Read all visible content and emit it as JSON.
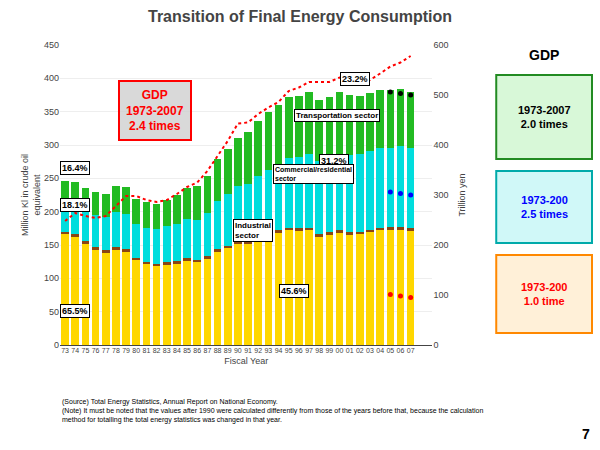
{
  "chart_data": {
    "type": "bar",
    "stacked": true,
    "title": "Transition of Final Energy Consumption",
    "xlabel": "Fiscal Year",
    "ylabel": "Million Kl in crude oil\nequivalent",
    "y2label": "Trillion yen",
    "categories": [
      "73",
      "74",
      "75",
      "76",
      "77",
      "78",
      "79",
      "80",
      "81",
      "82",
      "83",
      "84",
      "85",
      "86",
      "87",
      "88",
      "89",
      "90",
      "91",
      "92",
      "93",
      "94",
      "95",
      "96",
      "97",
      "98",
      "99",
      "00",
      "01",
      "02",
      "03",
      "04",
      "05",
      "06",
      "07"
    ],
    "ylim": [
      0,
      450
    ],
    "yticks": [
      0,
      50,
      100,
      150,
      200,
      250,
      300,
      350,
      400,
      450
    ],
    "y2lim": [
      0,
      600
    ],
    "y2ticks": [
      0,
      100,
      200,
      300,
      400,
      500,
      600
    ],
    "grid": true,
    "series": [
      {
        "type": "bar",
        "color": "#FFD700",
        "values": [
          166,
          162,
          152,
          143,
          138,
          143,
          140,
          127,
          121,
          118,
          120,
          122,
          126,
          124,
          129,
          140,
          145,
          152,
          152,
          158,
          163,
          168,
          172,
          171,
          172,
          162,
          165,
          168,
          165,
          166,
          169,
          172,
          173,
          173,
          171
        ]
      },
      {
        "type": "bar",
        "color": "#8B4513",
        "values": [
          4,
          4,
          4,
          4,
          4,
          4,
          4,
          4,
          4,
          4,
          4,
          4,
          4,
          4,
          4,
          4,
          4,
          4,
          4,
          4,
          4,
          4,
          4,
          4,
          4,
          4,
          4,
          4,
          4,
          4,
          4,
          4,
          4,
          4,
          4
        ]
      },
      {
        "type": "bar",
        "color": "#00DDDD",
        "values": [
          46,
          47,
          47,
          48,
          50,
          53,
          53,
          50,
          51,
          52,
          54,
          56,
          59,
          60,
          65,
          72,
          77,
          82,
          85,
          92,
          96,
          100,
          105,
          107,
          111,
          110,
          112,
          115,
          116,
          116,
          118,
          120,
          119,
          121,
          120
        ]
      },
      {
        "type": "bar",
        "color": "#22BB22",
        "values": [
          30,
          32,
          33,
          34,
          35,
          38,
          40,
          38,
          38,
          38,
          40,
          43,
          47,
          50,
          56,
          63,
          68,
          73,
          78,
          82,
          86,
          88,
          91,
          92,
          93,
          91,
          91,
          92,
          90,
          88,
          87,
          87,
          87,
          86,
          85
        ]
      },
      {
        "type": "line",
        "color": "#FF0000",
        "line_style": "dotted",
        "axis": "y2",
        "values": [
          248,
          264,
          258,
          254,
          258,
          278,
          298,
          298,
          290,
          286,
          290,
          302,
          316,
          325,
          348,
          378,
          408,
          443,
          445,
          462,
          475,
          486,
          508,
          515,
          526,
          526,
          526,
          535,
          528,
          526,
          530,
          543,
          557,
          565,
          578
        ]
      },
      {
        "type": "scatter",
        "marker": "circle",
        "color": "black",
        "axis": "y2",
        "x": [
          "07",
          "06",
          "05"
        ],
        "values": [
          500,
          503,
          506
        ]
      },
      {
        "type": "scatter",
        "marker": "circle",
        "color": "blue",
        "axis": "y2",
        "x": [
          "07",
          "06",
          "05"
        ],
        "values": [
          300,
          303,
          306
        ]
      },
      {
        "type": "scatter",
        "marker": "circle",
        "color": "red",
        "axis": "y2",
        "x": [
          "07",
          "06",
          "05"
        ],
        "values": [
          95,
          98,
          101
        ]
      }
    ],
    "annotations": [
      "65.5%",
      "18.1%",
      "16.4%",
      "45.6%",
      "31.2%",
      "23.2%",
      "Industrial\nsector",
      "Commercial/residential\nsector",
      "Transportation sector",
      "GDP\n1973-2007\n2.4 times",
      "GDP",
      "1973-2007\n2.0 times",
      "1973-200\n2.5 times",
      "1973-200\n1.0 time",
      "(Source) Total Energy Statistics, Annual Report on National Economy.\n(Note) It must be noted that the values after 1990 were calculated differently from those of the years before that, because the calculation\nmethod for totalling the total energy statistics was changed in that year.",
      "7"
    ]
  }
}
